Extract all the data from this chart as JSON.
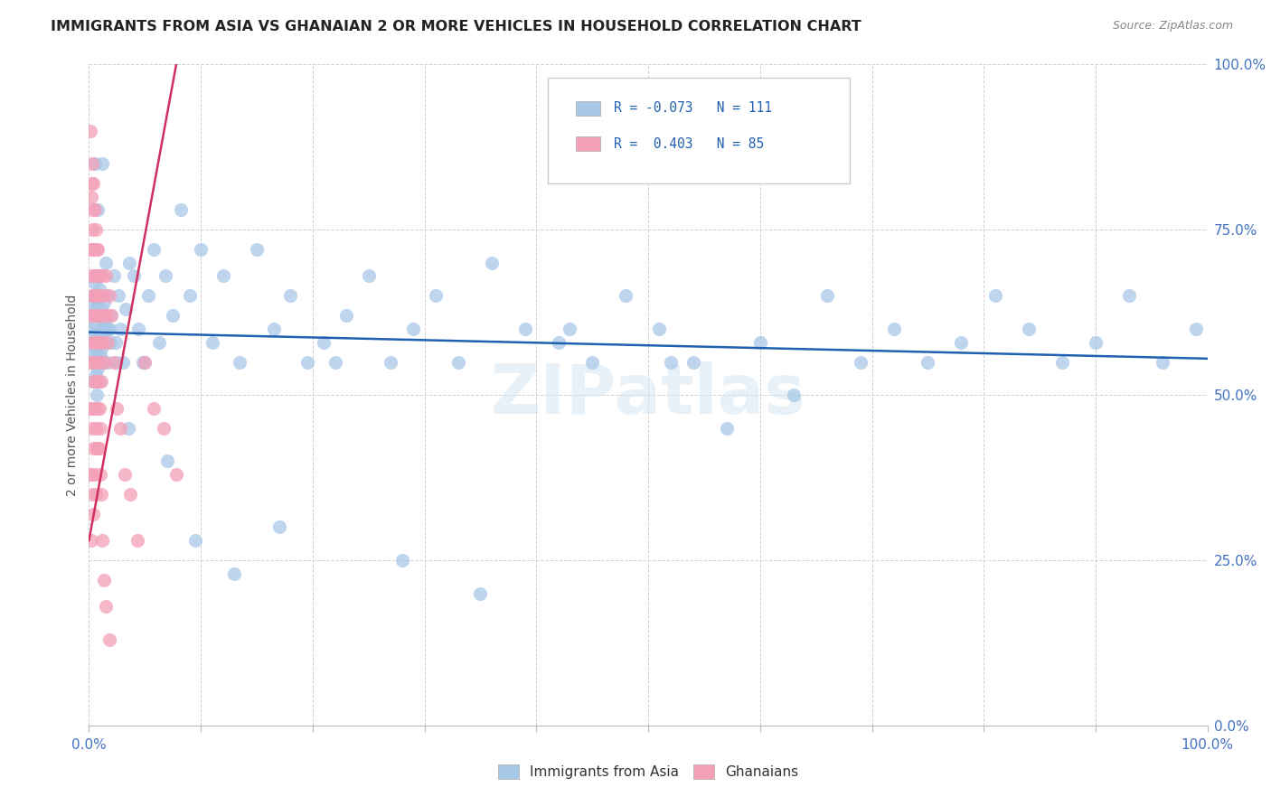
{
  "title": "IMMIGRANTS FROM ASIA VS GHANAIAN 2 OR MORE VEHICLES IN HOUSEHOLD CORRELATION CHART",
  "source": "Source: ZipAtlas.com",
  "ylabel": "2 or more Vehicles in Household",
  "yticks_labels": [
    "100.0%",
    "75.0%",
    "50.0%",
    "25.0%",
    "0.0%"
  ],
  "ytick_vals": [
    1.0,
    0.75,
    0.5,
    0.25,
    0.0
  ],
  "legend_label_blue": "Immigrants from Asia",
  "legend_label_pink": "Ghanaians",
  "blue_color": "#a8c8e8",
  "pink_color": "#f4a0b8",
  "blue_line_color": "#2060b0",
  "pink_line_color": "#d03060",
  "watermark": "ZIPatlas",
  "blue_r": "R = -0.073",
  "blue_n": "N = 111",
  "pink_r": "R =  0.403",
  "pink_n": "N = 85",
  "blue_scatter_x": [
    0.001,
    0.002,
    0.002,
    0.003,
    0.003,
    0.004,
    0.004,
    0.004,
    0.005,
    0.005,
    0.005,
    0.006,
    0.006,
    0.006,
    0.007,
    0.007,
    0.007,
    0.007,
    0.008,
    0.008,
    0.008,
    0.009,
    0.009,
    0.009,
    0.01,
    0.01,
    0.01,
    0.011,
    0.011,
    0.011,
    0.012,
    0.012,
    0.013,
    0.013,
    0.014,
    0.015,
    0.016,
    0.017,
    0.018,
    0.019,
    0.02,
    0.022,
    0.024,
    0.026,
    0.028,
    0.03,
    0.033,
    0.036,
    0.04,
    0.044,
    0.048,
    0.053,
    0.058,
    0.063,
    0.068,
    0.075,
    0.082,
    0.09,
    0.1,
    0.11,
    0.12,
    0.135,
    0.15,
    0.165,
    0.18,
    0.195,
    0.21,
    0.23,
    0.25,
    0.27,
    0.29,
    0.31,
    0.33,
    0.36,
    0.39,
    0.42,
    0.45,
    0.48,
    0.51,
    0.54,
    0.57,
    0.6,
    0.63,
    0.66,
    0.69,
    0.72,
    0.75,
    0.78,
    0.81,
    0.84,
    0.87,
    0.9,
    0.93,
    0.96,
    0.99,
    0.005,
    0.008,
    0.012,
    0.017,
    0.025,
    0.035,
    0.05,
    0.07,
    0.095,
    0.13,
    0.17,
    0.22,
    0.28,
    0.35,
    0.43,
    0.52
  ],
  "blue_scatter_y": [
    0.6,
    0.58,
    0.62,
    0.56,
    0.64,
    0.52,
    0.59,
    0.65,
    0.55,
    0.61,
    0.67,
    0.53,
    0.57,
    0.63,
    0.5,
    0.56,
    0.62,
    0.68,
    0.54,
    0.58,
    0.64,
    0.52,
    0.59,
    0.66,
    0.55,
    0.6,
    0.56,
    0.63,
    0.59,
    0.57,
    0.61,
    0.55,
    0.64,
    0.58,
    0.6,
    0.7,
    0.65,
    0.55,
    0.6,
    0.58,
    0.62,
    0.68,
    0.58,
    0.65,
    0.6,
    0.55,
    0.63,
    0.7,
    0.68,
    0.6,
    0.55,
    0.65,
    0.72,
    0.58,
    0.68,
    0.62,
    0.78,
    0.65,
    0.72,
    0.58,
    0.68,
    0.55,
    0.72,
    0.6,
    0.65,
    0.55,
    0.58,
    0.62,
    0.68,
    0.55,
    0.6,
    0.65,
    0.55,
    0.7,
    0.6,
    0.58,
    0.55,
    0.65,
    0.6,
    0.55,
    0.45,
    0.58,
    0.5,
    0.65,
    0.55,
    0.6,
    0.55,
    0.58,
    0.65,
    0.6,
    0.55,
    0.58,
    0.65,
    0.55,
    0.6,
    0.85,
    0.78,
    0.85,
    0.6,
    0.55,
    0.45,
    0.55,
    0.4,
    0.28,
    0.23,
    0.3,
    0.55,
    0.25,
    0.2,
    0.6,
    0.55
  ],
  "pink_scatter_x": [
    0.001,
    0.001,
    0.001,
    0.001,
    0.001,
    0.002,
    0.002,
    0.002,
    0.002,
    0.002,
    0.002,
    0.003,
    0.003,
    0.003,
    0.003,
    0.003,
    0.003,
    0.004,
    0.004,
    0.004,
    0.004,
    0.004,
    0.004,
    0.005,
    0.005,
    0.005,
    0.005,
    0.005,
    0.006,
    0.006,
    0.006,
    0.006,
    0.006,
    0.007,
    0.007,
    0.007,
    0.007,
    0.007,
    0.008,
    0.008,
    0.008,
    0.008,
    0.009,
    0.009,
    0.009,
    0.01,
    0.01,
    0.01,
    0.011,
    0.011,
    0.012,
    0.012,
    0.013,
    0.013,
    0.014,
    0.015,
    0.016,
    0.017,
    0.018,
    0.02,
    0.022,
    0.025,
    0.028,
    0.032,
    0.037,
    0.043,
    0.05,
    0.058,
    0.067,
    0.078,
    0.001,
    0.002,
    0.003,
    0.004,
    0.005,
    0.006,
    0.007,
    0.008,
    0.009,
    0.01,
    0.011,
    0.012,
    0.013,
    0.015,
    0.018
  ],
  "pink_scatter_y": [
    0.55,
    0.72,
    0.62,
    0.48,
    0.38,
    0.8,
    0.68,
    0.58,
    0.48,
    0.38,
    0.28,
    0.85,
    0.75,
    0.65,
    0.55,
    0.45,
    0.35,
    0.82,
    0.72,
    0.62,
    0.52,
    0.42,
    0.32,
    0.78,
    0.68,
    0.58,
    0.48,
    0.38,
    0.75,
    0.65,
    0.55,
    0.45,
    0.35,
    0.72,
    0.62,
    0.52,
    0.42,
    0.68,
    0.72,
    0.62,
    0.52,
    0.42,
    0.68,
    0.58,
    0.48,
    0.65,
    0.55,
    0.45,
    0.62,
    0.52,
    0.68,
    0.58,
    0.65,
    0.55,
    0.62,
    0.68,
    0.62,
    0.58,
    0.65,
    0.62,
    0.55,
    0.48,
    0.45,
    0.38,
    0.35,
    0.28,
    0.55,
    0.48,
    0.45,
    0.38,
    0.9,
    0.82,
    0.78,
    0.72,
    0.65,
    0.58,
    0.52,
    0.48,
    0.42,
    0.38,
    0.35,
    0.28,
    0.22,
    0.18,
    0.13
  ],
  "blue_trend_x": [
    0.0,
    1.0
  ],
  "blue_trend_y": [
    0.595,
    0.555
  ],
  "pink_trend_x": [
    0.0,
    0.078
  ],
  "pink_trend_y": [
    0.28,
    1.0
  ],
  "xlim": [
    0.0,
    1.0
  ],
  "ylim": [
    0.0,
    1.0
  ]
}
